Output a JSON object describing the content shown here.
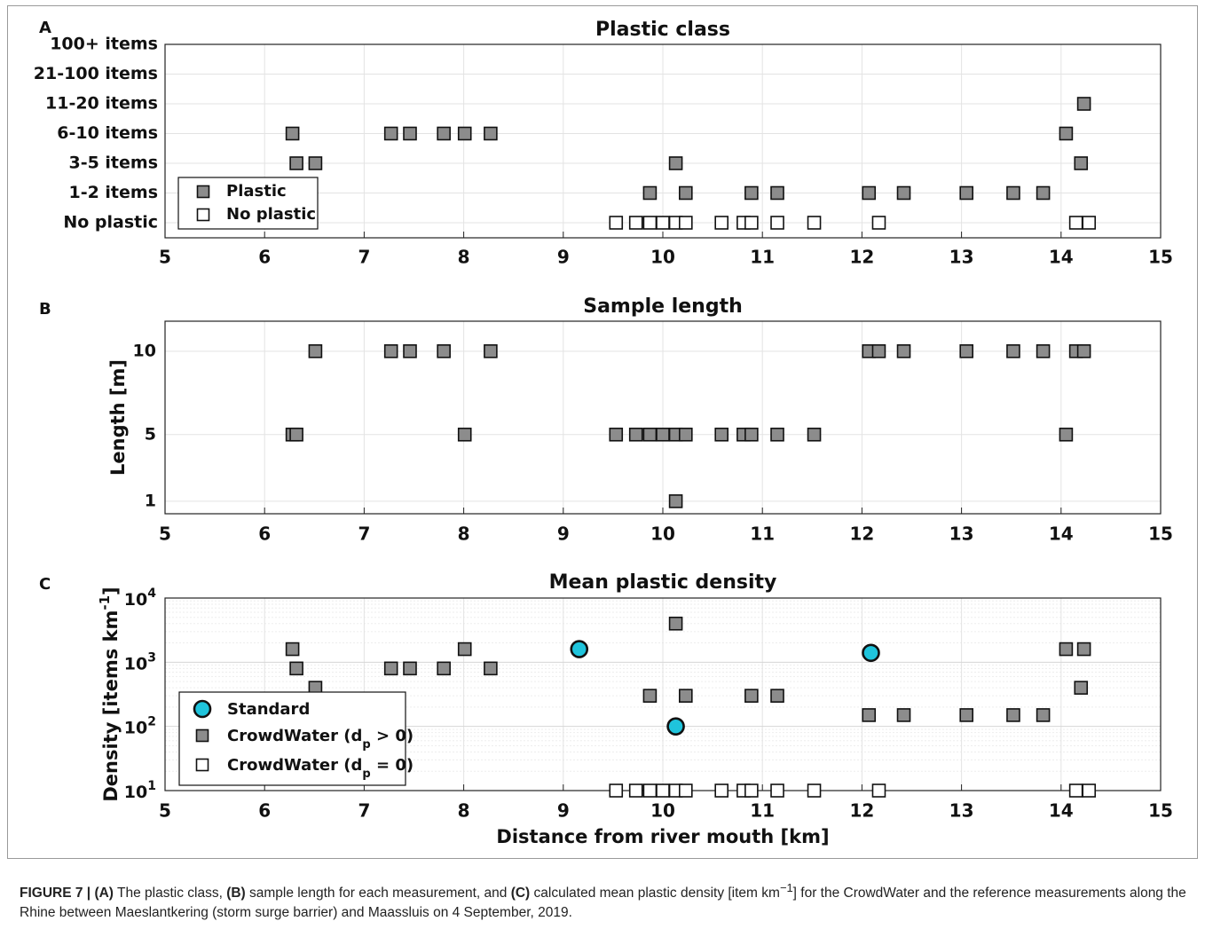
{
  "chart_data": [
    {
      "panel": "A",
      "type": "scatter",
      "title": "Plastic class",
      "xlabel": "",
      "ylabel": "",
      "xlim": [
        5,
        15
      ],
      "xticks": [
        "5",
        "6",
        "7",
        "8",
        "9",
        "10",
        "11",
        "12",
        "13",
        "14",
        "15"
      ],
      "yticks": [
        "No plastic",
        "1-2 items",
        "3-5 items",
        "6-10 items",
        "11-20 items",
        "21-100 items",
        "100+ items"
      ],
      "grid": true,
      "legend_position": "bottom-left",
      "series": [
        {
          "name": "Plastic",
          "marker": "square",
          "color": "#8c8c8c",
          "points": [
            [
              6.28,
              "6-10 items"
            ],
            [
              7.27,
              "6-10 items"
            ],
            [
              7.46,
              "6-10 items"
            ],
            [
              7.8,
              "6-10 items"
            ],
            [
              8.01,
              "6-10 items"
            ],
            [
              8.27,
              "6-10 items"
            ],
            [
              14.05,
              "6-10 items"
            ],
            [
              14.23,
              "11-20 items"
            ],
            [
              6.32,
              "3-5 items"
            ],
            [
              6.51,
              "3-5 items"
            ],
            [
              10.13,
              "3-5 items"
            ],
            [
              14.2,
              "3-5 items"
            ],
            [
              9.87,
              "1-2 items"
            ],
            [
              10.23,
              "1-2 items"
            ],
            [
              10.89,
              "1-2 items"
            ],
            [
              11.15,
              "1-2 items"
            ],
            [
              12.07,
              "1-2 items"
            ],
            [
              12.42,
              "1-2 items"
            ],
            [
              13.05,
              "1-2 items"
            ],
            [
              13.52,
              "1-2 items"
            ],
            [
              13.82,
              "1-2 items"
            ]
          ]
        },
        {
          "name": "No plastic",
          "marker": "square",
          "color": "#ffffff",
          "points": [
            [
              9.53,
              "No plastic"
            ],
            [
              9.73,
              "No plastic"
            ],
            [
              9.87,
              "No plastic"
            ],
            [
              10.0,
              "No plastic"
            ],
            [
              10.13,
              "No plastic"
            ],
            [
              10.23,
              "No plastic"
            ],
            [
              10.59,
              "No plastic"
            ],
            [
              10.81,
              "No plastic"
            ],
            [
              10.89,
              "No plastic"
            ],
            [
              11.15,
              "No plastic"
            ],
            [
              11.52,
              "No plastic"
            ],
            [
              12.17,
              "No plastic"
            ],
            [
              14.15,
              "No plastic"
            ],
            [
              14.28,
              "No plastic"
            ]
          ]
        }
      ]
    },
    {
      "panel": "B",
      "type": "scatter",
      "title": "Sample length",
      "xlabel": "",
      "ylabel": "Length [m]",
      "xlim": [
        5,
        15
      ],
      "ylim": [
        0.25,
        11.8
      ],
      "xticks": [
        "5",
        "6",
        "7",
        "8",
        "9",
        "10",
        "11",
        "12",
        "13",
        "14",
        "15"
      ],
      "yticks": [
        "1",
        "5",
        "10"
      ],
      "grid": true,
      "series": [
        {
          "name": "",
          "marker": "square",
          "color": "#8c8c8c",
          "points": [
            [
              6.51,
              10
            ],
            [
              7.27,
              10
            ],
            [
              7.46,
              10
            ],
            [
              7.8,
              10
            ],
            [
              8.27,
              10
            ],
            [
              12.07,
              10
            ],
            [
              12.17,
              10
            ],
            [
              12.42,
              10
            ],
            [
              13.05,
              10
            ],
            [
              13.52,
              10
            ],
            [
              13.82,
              10
            ],
            [
              14.15,
              10
            ],
            [
              14.23,
              10
            ],
            [
              6.28,
              5
            ],
            [
              6.32,
              5
            ],
            [
              8.01,
              5
            ],
            [
              9.53,
              5
            ],
            [
              9.73,
              5
            ],
            [
              9.87,
              5
            ],
            [
              10.0,
              5
            ],
            [
              10.13,
              5
            ],
            [
              10.23,
              5
            ],
            [
              10.59,
              5
            ],
            [
              10.81,
              5
            ],
            [
              10.89,
              5
            ],
            [
              11.15,
              5
            ],
            [
              11.52,
              5
            ],
            [
              14.05,
              5
            ],
            [
              10.13,
              1
            ]
          ]
        }
      ]
    },
    {
      "panel": "C",
      "type": "scatter",
      "title": "Mean plastic density",
      "xlabel": "Distance from river mouth [km]",
      "ylabel": "Density [items km",
      "ylabel_sup": "-1",
      "ylabel_end": "]",
      "xlim": [
        5,
        15
      ],
      "ylim": [
        10,
        10000
      ],
      "yscale": "log",
      "xticks": [
        "5",
        "6",
        "7",
        "8",
        "9",
        "10",
        "11",
        "12",
        "13",
        "14",
        "15"
      ],
      "ytick_values": [
        10,
        100,
        1000,
        10000
      ],
      "ytick_base": "10",
      "ytick_exps": [
        "1",
        "2",
        "3",
        "4"
      ],
      "grid": true,
      "legend_position": "bottom-left",
      "series": [
        {
          "name": "Standard",
          "marker": "circle",
          "color": "#1fc4dc",
          "points": [
            [
              9.16,
              1600
            ],
            [
              10.13,
              100
            ],
            [
              12.09,
              1400
            ]
          ]
        },
        {
          "name": "CrowdWater (d",
          "name_sub": "p",
          "name_end": " > 0)",
          "marker": "square",
          "color": "#8c8c8c",
          "points": [
            [
              6.28,
              1600
            ],
            [
              8.01,
              1600
            ],
            [
              10.13,
              4000
            ],
            [
              14.05,
              1600
            ],
            [
              14.23,
              1600
            ],
            [
              6.32,
              800
            ],
            [
              7.27,
              800
            ],
            [
              7.46,
              800
            ],
            [
              7.8,
              800
            ],
            [
              8.27,
              800
            ],
            [
              6.51,
              400
            ],
            [
              14.2,
              400
            ],
            [
              9.87,
              300
            ],
            [
              10.23,
              300
            ],
            [
              10.89,
              300
            ],
            [
              11.15,
              300
            ],
            [
              12.07,
              150
            ],
            [
              12.42,
              150
            ],
            [
              13.05,
              150
            ],
            [
              13.52,
              150
            ],
            [
              13.82,
              150
            ]
          ]
        },
        {
          "name": "CrowdWater (d",
          "name_sub": "p",
          "name_end": " = 0)",
          "marker": "square",
          "color": "#ffffff",
          "points": [
            [
              9.53,
              10
            ],
            [
              9.73,
              10
            ],
            [
              9.87,
              10
            ],
            [
              10.0,
              10
            ],
            [
              10.13,
              10
            ],
            [
              10.23,
              10
            ],
            [
              10.59,
              10
            ],
            [
              10.81,
              10
            ],
            [
              10.89,
              10
            ],
            [
              11.15,
              10
            ],
            [
              11.52,
              10
            ],
            [
              12.17,
              10
            ],
            [
              14.15,
              10
            ],
            [
              14.28,
              10
            ]
          ]
        }
      ]
    }
  ],
  "caption": {
    "label": "FIGURE 7 | ",
    "a": "(A)",
    "t1": " The plastic class, ",
    "b": "(B)",
    "t2": " sample length for each measurement, and ",
    "c": "(C)",
    "t3": " calculated mean plastic density [item km",
    "sup": "−1",
    "t4": "] for the CrowdWater and the reference measurements along the Rhine between Maeslantkering (storm surge barrier) and Maassluis on 4 September, 2019."
  },
  "colors": {
    "plastic": "#8c8c8c",
    "no_plastic": "#ffffff",
    "standard": "#1fc4dc",
    "grid": "#e3e3e3",
    "axis": "#222222"
  }
}
